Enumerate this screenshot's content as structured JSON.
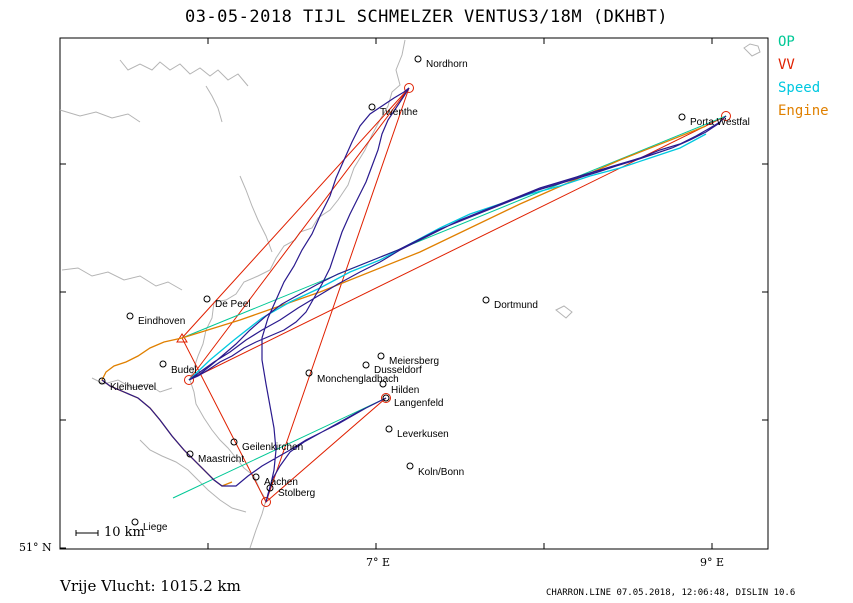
{
  "title": "03-05-2018   TIJL SCHMELZER   VENTUS3/18M (DKHBT)",
  "legend": [
    {
      "label": "OP",
      "color": "#00c896"
    },
    {
      "label": "VV",
      "color": "#e02000"
    },
    {
      "label": "Speed",
      "color": "#00c8e0"
    },
    {
      "label": "Engine",
      "color": "#e08000"
    }
  ],
  "axes": {
    "lat_label": "51° N",
    "lon_labels": [
      "7° E",
      "9° E"
    ]
  },
  "scale_bar": "10 km",
  "cities": [
    {
      "name": "Nordhorn"
    },
    {
      "name": "Twenthe"
    },
    {
      "name": "Porta Westfal"
    },
    {
      "name": "De Peel"
    },
    {
      "name": "Eindhoven"
    },
    {
      "name": "Dortmund"
    },
    {
      "name": "Budel"
    },
    {
      "name": "Meiersberg"
    },
    {
      "name": "Dusseldorf"
    },
    {
      "name": "Monchengladbach"
    },
    {
      "name": "Hilden"
    },
    {
      "name": "Kleihuevel"
    },
    {
      "name": "Langenfeld"
    },
    {
      "name": "Leverkusen"
    },
    {
      "name": "Geilenkirchen"
    },
    {
      "name": "Maastricht"
    },
    {
      "name": "Koln/Bonn"
    },
    {
      "name": "Aachen"
    },
    {
      "name": "Stolberg"
    },
    {
      "name": "Liege"
    }
  ],
  "footer": {
    "distance": "Vrije Vlucht: 1015.2 km",
    "info": "CHARRON.LINE 07.05.2018, 12:06:48, DISLIN 10.6"
  }
}
